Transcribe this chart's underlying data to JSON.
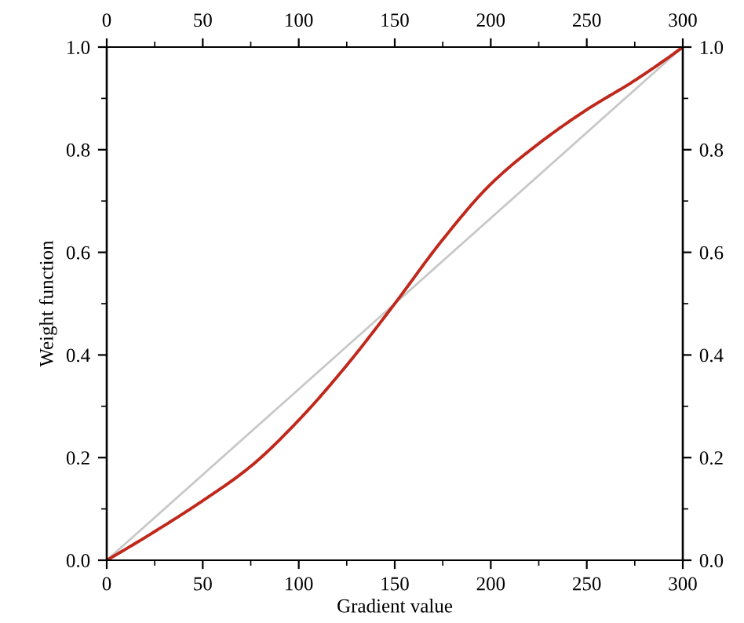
{
  "chart_data": {
    "type": "line",
    "xlabel": "Gradient value",
    "ylabel": "Weight function",
    "series": [
      {
        "color": "#c8c8c8",
        "x": [
          0,
          300
        ],
        "values": [
          0,
          1
        ]
      },
      {
        "color": "#c0281c",
        "x": [
          0,
          25,
          50,
          75,
          100,
          125,
          150,
          175,
          200,
          225,
          250,
          275,
          300
        ],
        "values": [
          0,
          0.056,
          0.116,
          0.183,
          0.273,
          0.38,
          0.5,
          0.625,
          0.733,
          0.812,
          0.878,
          0.935,
          1
        ]
      }
    ],
    "xlim": [
      0,
      300
    ],
    "xticks": [
      0,
      50,
      100,
      150,
      200,
      250,
      300
    ],
    "x2lim": [
      0,
      300
    ],
    "x2ticks": [
      0,
      50,
      100,
      150,
      200,
      250,
      300
    ],
    "ylim": [
      0,
      1
    ],
    "yticks": [
      {
        "value": 0,
        "label": "0.0"
      },
      0.2,
      0.4,
      0.6,
      0.8,
      {
        "value": 1,
        "label": "1.0"
      }
    ],
    "y2lim": [
      0,
      1
    ],
    "y2ticks": [
      {
        "value": 0,
        "label": "0.0"
      },
      0.2,
      0.4,
      0.6,
      0.8,
      {
        "value": 1,
        "label": "1.0"
      }
    ],
    "grid": false,
    "legend": false,
    "marker": "none",
    "line_style": "solid"
  }
}
